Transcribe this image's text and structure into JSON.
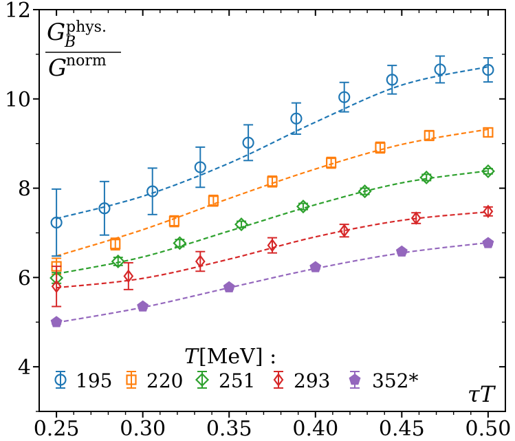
{
  "chart_data": {
    "type": "scatter",
    "title": "",
    "ylabel": {
      "num_main": "G",
      "num_sub": "B",
      "num_sup": "phys.",
      "den_main": "G",
      "den_sup": "norm"
    },
    "xlabel": {
      "italic": "τT"
    },
    "xlim": [
      0.24,
      0.51
    ],
    "ylim": [
      3.0,
      12.0
    ],
    "xticks": [
      0.25,
      0.3,
      0.35,
      0.4,
      0.45,
      0.5
    ],
    "xtick_labels": [
      "0.25",
      "0.30",
      "0.35",
      "0.40",
      "0.45",
      "0.50"
    ],
    "yticks": [
      4,
      6,
      8,
      10,
      12
    ],
    "ytick_labels": [
      "4",
      "6",
      "8",
      "10",
      "12"
    ],
    "legend_title": {
      "italic": "T",
      "unit": "[MeV] :"
    },
    "series": [
      {
        "name": "195",
        "color": "#1f77b4",
        "marker": "circle",
        "x": [
          0.25,
          0.2778,
          0.3056,
          0.3333,
          0.3611,
          0.3889,
          0.4167,
          0.4444,
          0.4722,
          0.5
        ],
        "y": [
          7.23,
          7.55,
          7.93,
          8.47,
          9.02,
          9.56,
          10.04,
          10.43,
          10.66,
          10.65
        ],
        "err": [
          0.75,
          0.6,
          0.52,
          0.45,
          0.4,
          0.35,
          0.33,
          0.32,
          0.3,
          0.27
        ],
        "fit": [
          [
            0.25,
            7.32
          ],
          [
            0.3,
            7.82
          ],
          [
            0.35,
            8.56
          ],
          [
            0.4,
            9.48
          ],
          [
            0.45,
            10.31
          ],
          [
            0.5,
            10.72
          ]
        ]
      },
      {
        "name": "220",
        "color": "#ff7f0e",
        "marker": "square",
        "x": [
          0.25,
          0.2841,
          0.3182,
          0.3409,
          0.375,
          0.4091,
          0.4375,
          0.4659,
          0.5
        ],
        "y": [
          6.25,
          6.75,
          7.26,
          7.72,
          8.15,
          8.57,
          8.91,
          9.18,
          9.25
        ],
        "err": [
          0.18,
          0.13,
          0.12,
          0.12,
          0.12,
          0.12,
          0.12,
          0.11,
          0.1
        ],
        "fit": [
          [
            0.25,
            6.48
          ],
          [
            0.3,
            7.07
          ],
          [
            0.35,
            7.77
          ],
          [
            0.4,
            8.43
          ],
          [
            0.45,
            8.98
          ],
          [
            0.5,
            9.32
          ]
        ]
      },
      {
        "name": "251",
        "color": "#2ca02c",
        "marker": "diamond",
        "x": [
          0.25,
          0.2857,
          0.3214,
          0.3571,
          0.3929,
          0.4286,
          0.4643,
          0.5
        ],
        "y": [
          5.99,
          6.36,
          6.77,
          7.19,
          7.59,
          7.93,
          8.24,
          8.38
        ],
        "err": [
          0.12,
          0.09,
          0.08,
          0.07,
          0.07,
          0.07,
          0.07,
          0.06
        ],
        "fit": [
          [
            0.25,
            6.08
          ],
          [
            0.3,
            6.46
          ],
          [
            0.35,
            7.04
          ],
          [
            0.4,
            7.63
          ],
          [
            0.45,
            8.12
          ],
          [
            0.5,
            8.39
          ]
        ]
      },
      {
        "name": "293",
        "color": "#d62728",
        "marker": "thin-diamond",
        "x": [
          0.25,
          0.2917,
          0.3333,
          0.375,
          0.4167,
          0.4583,
          0.5
        ],
        "y": [
          5.8,
          6.03,
          6.36,
          6.72,
          7.05,
          7.33,
          7.48
        ],
        "err": [
          0.45,
          0.3,
          0.22,
          0.17,
          0.14,
          0.12,
          0.1
        ],
        "fit": [
          [
            0.25,
            5.77
          ],
          [
            0.3,
            5.98
          ],
          [
            0.35,
            6.41
          ],
          [
            0.4,
            6.91
          ],
          [
            0.45,
            7.28
          ],
          [
            0.5,
            7.47
          ]
        ]
      },
      {
        "name": "352*",
        "color": "#9467bd",
        "marker": "pentagon",
        "x": [
          0.25,
          0.3,
          0.35,
          0.4,
          0.45,
          0.5
        ],
        "y": [
          5.0,
          5.35,
          5.78,
          6.23,
          6.58,
          6.77
        ],
        "err": [
          0.04,
          0.04,
          0.04,
          0.04,
          0.04,
          0.04
        ],
        "fit": [
          [
            0.25,
            4.99
          ],
          [
            0.3,
            5.33
          ],
          [
            0.35,
            5.77
          ],
          [
            0.4,
            6.2
          ],
          [
            0.45,
            6.55
          ],
          [
            0.5,
            6.78
          ]
        ]
      }
    ]
  }
}
